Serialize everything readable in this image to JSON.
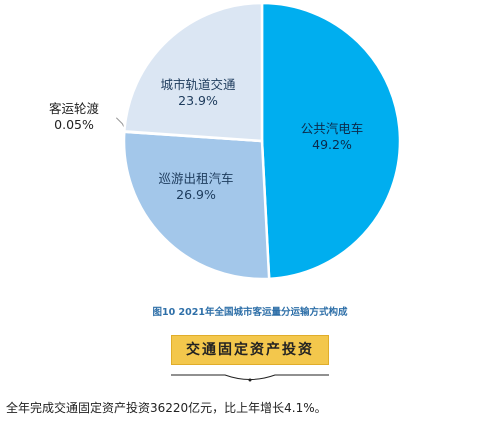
{
  "chart_data": {
    "type": "pie",
    "title": "图10  2021年全国城市客运量分运输方式构成",
    "slices": [
      {
        "name": "公共汽电车",
        "label": "49.2%",
        "value": 49.2,
        "color": "#00aeef"
      },
      {
        "name": "巡游出租汽车",
        "label": "26.9%",
        "value": 26.9,
        "color": "#a3c7ea"
      },
      {
        "name": "客运轮渡",
        "label": "0.05%",
        "value": 0.05,
        "color": "#e5edf6"
      },
      {
        "name": "城市轨道交通",
        "label": "23.9%",
        "value": 23.9,
        "color": "#dbe6f3"
      }
    ],
    "legend": "none"
  },
  "section": {
    "title": "交通固定资产投资"
  },
  "body": {
    "text": "全年完成交通固定资产投资36220亿元，比上年增长4.1%。"
  }
}
